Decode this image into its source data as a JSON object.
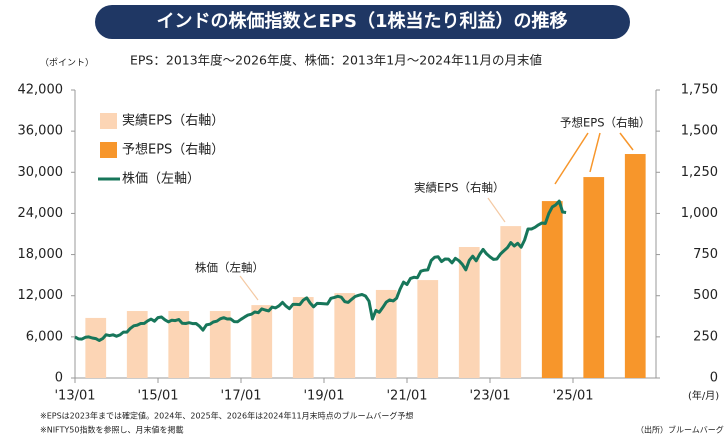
{
  "title": "インドの株価指数とEPS（1株当たり利益）の推移",
  "chart_data": {
    "type": "combo",
    "subtitle": "EPS：2013年度～2026年度、株価：2013年1月～2024年11月の月末値",
    "y_unit": "（ポイント）",
    "x_unit": "(年/月)",
    "xlim": [
      "2013-01",
      "2027-01"
    ],
    "xticks": [
      {
        "value": "2013-01",
        "label": "'13/01"
      },
      {
        "value": "2015-01",
        "label": "'15/01"
      },
      {
        "value": "2017-01",
        "label": "'17/01"
      },
      {
        "value": "2019-01",
        "label": "'19/01"
      },
      {
        "value": "2021-01",
        "label": "'21/01"
      },
      {
        "value": "2023-01",
        "label": "'23/01"
      },
      {
        "value": "2025-01",
        "label": "'25/01"
      }
    ],
    "ylim": [
      0,
      42000
    ],
    "yticks": [
      0,
      {
        "value": 6000,
        "label": "6,000"
      },
      {
        "value": 12000,
        "label": "12,000"
      },
      {
        "value": 18000,
        "label": "18,000"
      },
      {
        "value": 24000,
        "label": "24,000"
      },
      {
        "value": 30000,
        "label": "30,000"
      },
      {
        "value": 36000,
        "label": "36,000"
      },
      {
        "value": 42000,
        "label": "42,000"
      }
    ],
    "y2lim": [
      0,
      1750
    ],
    "y2ticks": [
      0,
      250,
      500,
      750,
      {
        "value": 1000,
        "label": "1,000"
      },
      {
        "value": 1250,
        "label": "1,250"
      },
      {
        "value": 1500,
        "label": "1,500"
      },
      {
        "value": 1750,
        "label": "1,750"
      }
    ],
    "series": [
      {
        "name": "実績EPS（右軸）",
        "type": "bar",
        "axis": "y2",
        "color": "#fcd5b5",
        "x": [
          2013,
          2014,
          2015,
          2016,
          2017,
          2018,
          2019,
          2020,
          2021,
          2022,
          2023
        ],
        "values": [
          365,
          407,
          407,
          407,
          443,
          492,
          516,
          535,
          595,
          796,
          923
        ]
      },
      {
        "name": "予想EPS（右軸）",
        "type": "bar",
        "axis": "y2",
        "color": "#f7962b",
        "x": [
          2024,
          2025,
          2026
        ],
        "values": [
          1075,
          1221,
          1361
        ]
      },
      {
        "name": "株価（左軸）",
        "type": "line",
        "color": "#17765a",
        "x": [
          "2013-01",
          "2013-02",
          "2013-03",
          "2013-04",
          "2013-05",
          "2013-06",
          "2013-07",
          "2013-08",
          "2013-09",
          "2013-10",
          "2013-11",
          "2013-12",
          "2014-01",
          "2014-02",
          "2014-03",
          "2014-04",
          "2014-05",
          "2014-06",
          "2014-07",
          "2014-08",
          "2014-09",
          "2014-10",
          "2014-11",
          "2014-12",
          "2015-01",
          "2015-02",
          "2015-03",
          "2015-04",
          "2015-05",
          "2015-06",
          "2015-07",
          "2015-08",
          "2015-09",
          "2015-10",
          "2015-11",
          "2015-12",
          "2016-01",
          "2016-02",
          "2016-03",
          "2016-04",
          "2016-05",
          "2016-06",
          "2016-07",
          "2016-08",
          "2016-09",
          "2016-10",
          "2016-11",
          "2016-12",
          "2017-01",
          "2017-02",
          "2017-03",
          "2017-04",
          "2017-05",
          "2017-06",
          "2017-07",
          "2017-08",
          "2017-09",
          "2017-10",
          "2017-11",
          "2017-12",
          "2018-01",
          "2018-02",
          "2018-03",
          "2018-04",
          "2018-05",
          "2018-06",
          "2018-07",
          "2018-08",
          "2018-09",
          "2018-10",
          "2018-11",
          "2018-12",
          "2019-01",
          "2019-02",
          "2019-03",
          "2019-04",
          "2019-05",
          "2019-06",
          "2019-07",
          "2019-08",
          "2019-09",
          "2019-10",
          "2019-11",
          "2019-12",
          "2020-01",
          "2020-02",
          "2020-03",
          "2020-04",
          "2020-05",
          "2020-06",
          "2020-07",
          "2020-08",
          "2020-09",
          "2020-10",
          "2020-11",
          "2020-12",
          "2021-01",
          "2021-02",
          "2021-03",
          "2021-04",
          "2021-05",
          "2021-06",
          "2021-07",
          "2021-08",
          "2021-09",
          "2021-10",
          "2021-11",
          "2021-12",
          "2022-01",
          "2022-02",
          "2022-03",
          "2022-04",
          "2022-05",
          "2022-06",
          "2022-07",
          "2022-08",
          "2022-09",
          "2022-10",
          "2022-11",
          "2022-12",
          "2023-01",
          "2023-02",
          "2023-03",
          "2023-04",
          "2023-05",
          "2023-06",
          "2023-07",
          "2023-08",
          "2023-09",
          "2023-10",
          "2023-11",
          "2023-12",
          "2024-01",
          "2024-02",
          "2024-03",
          "2024-04",
          "2024-05",
          "2024-06",
          "2024-07",
          "2024-08",
          "2024-09",
          "2024-10",
          "2024-11"
        ],
        "values": [
          6000,
          5700,
          5680,
          5930,
          5990,
          5840,
          5740,
          5470,
          5740,
          6300,
          6180,
          6300,
          6090,
          6280,
          6700,
          6700,
          7230,
          7610,
          7720,
          7950,
          7960,
          8320,
          8590,
          8280,
          8810,
          8900,
          8490,
          8180,
          8430,
          8370,
          8530,
          7970,
          7950,
          8070,
          7940,
          7950,
          7560,
          6990,
          7740,
          7850,
          8160,
          8290,
          8640,
          8790,
          8610,
          8620,
          8220,
          8190,
          8560,
          8880,
          9170,
          9300,
          9620,
          9520,
          10080,
          9920,
          9790,
          10340,
          10230,
          10530,
          11030,
          10490,
          10110,
          10740,
          10740,
          10710,
          11360,
          11680,
          10930,
          10390,
          10880,
          10860,
          10830,
          10790,
          11620,
          11750,
          11920,
          11790,
          11120,
          11020,
          11470,
          11880,
          12060,
          12170,
          11960,
          11200,
          8600,
          9860,
          9580,
          10300,
          11070,
          11390,
          11250,
          11640,
          12970,
          13980,
          13630,
          14530,
          14690,
          14630,
          15580,
          15720,
          15760,
          17130,
          17620,
          17670,
          16980,
          17350,
          17340,
          16790,
          17460,
          17100,
          16580,
          15780,
          17160,
          17760,
          17090,
          18010,
          18760,
          18110,
          17660,
          17300,
          17360,
          18070,
          18530,
          18990,
          19750,
          19250,
          19640,
          19080,
          20130,
          21730,
          21730,
          21980,
          22330,
          22600,
          22530,
          23990,
          24950,
          25240,
          25800,
          24210,
          24130
        ]
      }
    ],
    "annotations": [
      "実績EPS（右軸）",
      "株価（左軸）",
      "予想EPS（右軸）"
    ],
    "notes": [
      "※EPSは2023年までは確定値。2024年、2025年、2026年は2024年11月末時点のブルームバーグ予想",
      "※NIFTY50指数を参照し、月末値を掲載"
    ],
    "source": "（出所）ブルームバーグ"
  }
}
